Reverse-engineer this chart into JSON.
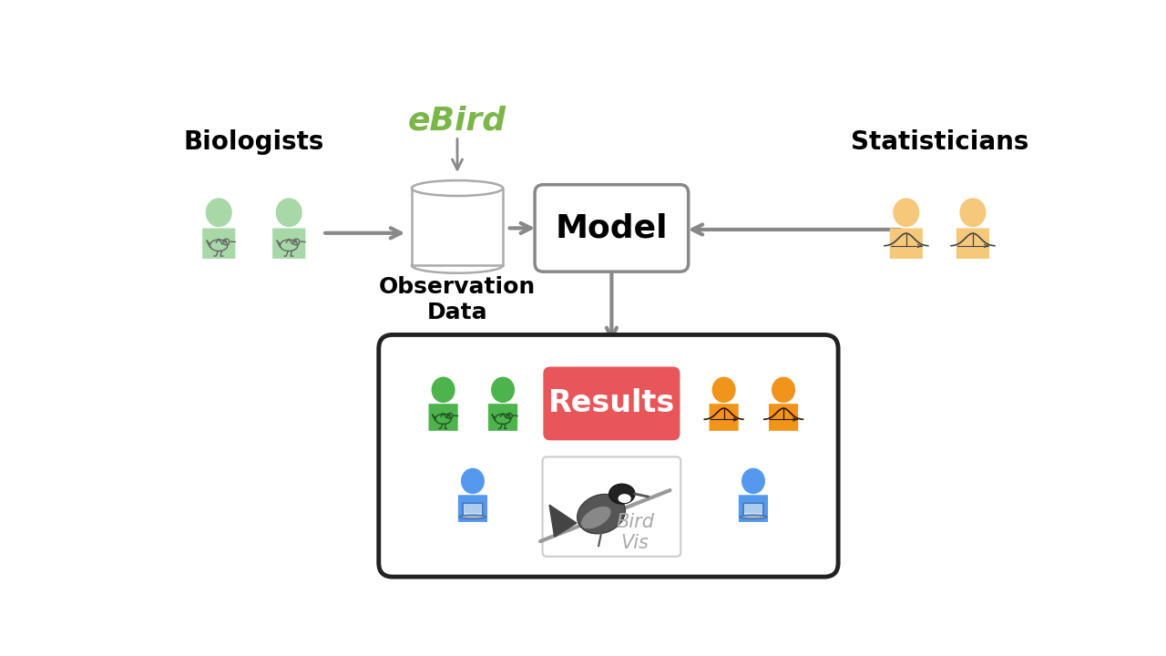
{
  "bg_color": "#ffffff",
  "biologists_label": "Biologists",
  "statisticians_label": "Statisticians",
  "ebird_label": "eBird",
  "obs_data_label": "Observation\nData",
  "model_label": "Model",
  "results_label": "Results",
  "birdvis_label": "Bird\nVis",
  "green_light": "#a8d8a8",
  "green_dark": "#4db34d",
  "orange_light": "#f5c87a",
  "orange_dark": "#f0941a",
  "blue_color": "#5599ee",
  "results_color": "#e8565a",
  "model_box_edge": "#888888",
  "arrow_color": "#888888",
  "ebird_color": "#7ab648",
  "db_edge_color": "#aaaaaa",
  "bottom_box_edge": "#222222",
  "laptop_color": "#4477bb",
  "bell_color": "#555555",
  "bird_body_color": "#888888"
}
